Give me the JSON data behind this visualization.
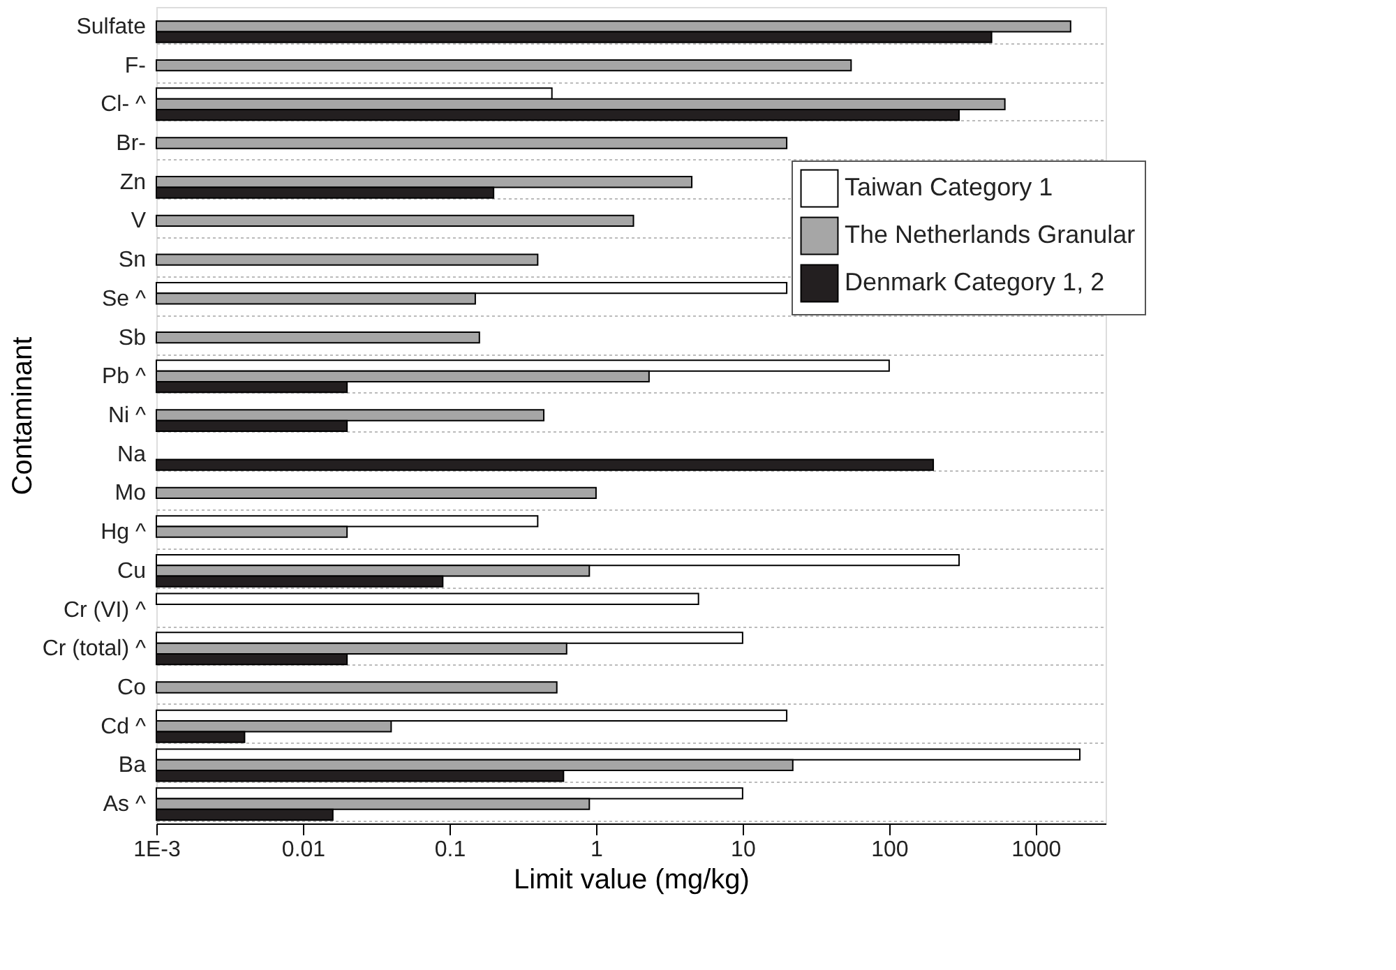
{
  "chart_data": {
    "type": "bar",
    "orientation": "horizontal",
    "xlabel": "Limit value (mg/kg)",
    "ylabel": "Contaminant",
    "categories": [
      "Sulfate",
      "F-",
      "Cl- ^",
      "Br-",
      "Zn",
      "V",
      "Sn",
      "Se ^",
      "Sb",
      "Pb ^",
      "Ni ^",
      "Na",
      "Mo",
      "Hg ^",
      "Cu",
      "Cr (VI) ^",
      "Cr (total) ^",
      "Co",
      "Cd ^",
      "Ba",
      "As ^"
    ],
    "series": [
      {
        "name": "Taiwan Category 1",
        "color": "#ffffff",
        "values": [
          null,
          null,
          0.5,
          null,
          null,
          null,
          null,
          20,
          null,
          100,
          null,
          null,
          null,
          0.4,
          300,
          5,
          10,
          null,
          20,
          2000,
          10
        ]
      },
      {
        "name": "The Netherlands Granular",
        "color": "#a6a6a6",
        "values": [
          1730,
          55,
          616,
          20,
          4.5,
          1.8,
          0.4,
          0.15,
          0.16,
          2.3,
          0.44,
          null,
          1,
          0.02,
          0.9,
          null,
          0.63,
          0.54,
          0.04,
          22,
          0.9
        ]
      },
      {
        "name": "Denmark Category 1, 2",
        "color": "#231f20",
        "values": [
          500,
          null,
          300,
          null,
          0.2,
          null,
          null,
          null,
          null,
          0.02,
          0.02,
          200,
          null,
          null,
          0.09,
          null,
          0.02,
          null,
          0.004,
          0.6,
          0.016
        ]
      }
    ],
    "log": "x",
    "xlim": [
      0.001,
      3000
    ],
    "xticks": [
      {
        "value": 0.001,
        "label": "1E-3"
      },
      0.01,
      0.1,
      1,
      10,
      100,
      1000
    ],
    "grid": "y",
    "legend": "top right"
  }
}
